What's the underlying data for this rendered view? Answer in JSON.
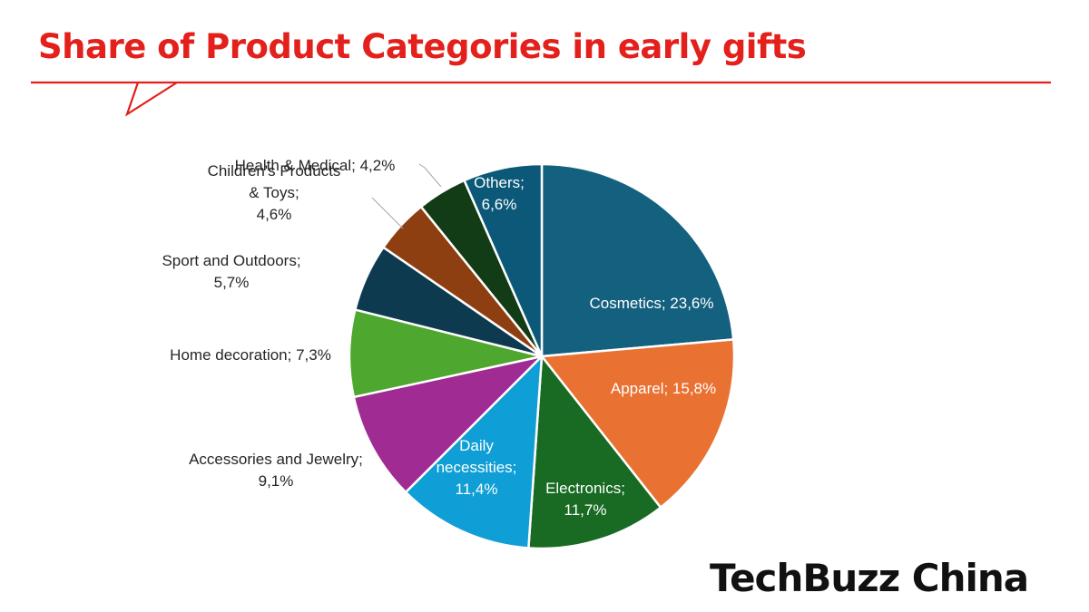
{
  "title": "Share of Product Categories in early gifts",
  "brand": {
    "logo_text": "TechBuzz China",
    "accent": "#e3201b"
  },
  "chart_data": {
    "type": "pie",
    "title": "Share of Product Categories in early gifts",
    "start": "12 o'clock, clockwise",
    "slices": [
      {
        "label": "Cosmetics",
        "value": 23.6,
        "text": "Cosmetics; 23,6%",
        "color": "#14607f",
        "label_pos": "inside"
      },
      {
        "label": "Apparel",
        "value": 15.8,
        "text": "Apparel; 15,8%",
        "color": "#e97132",
        "label_pos": "inside"
      },
      {
        "label": "Electronics",
        "value": 11.7,
        "text": "Electronics; 11,7%",
        "color": "#196b24",
        "label_pos": "inside"
      },
      {
        "label": "Daily necessities",
        "value": 11.4,
        "text": "Daily necessities; 11,4%",
        "color": "#0f9ed5",
        "label_pos": "inside"
      },
      {
        "label": "Accessories and Jewelry",
        "value": 9.1,
        "text": "Accessories and Jewelry; 9,1%",
        "color": "#a02b93",
        "label_pos": "outside"
      },
      {
        "label": "Home decoration",
        "value": 7.3,
        "text": "Home decoration; 7,3%",
        "color": "#4ea72e",
        "label_pos": "outside"
      },
      {
        "label": "Sport and Outdoors",
        "value": 5.7,
        "text": "Sport and Outdoors; 5,7%",
        "color": "#0e3a50",
        "label_pos": "outside"
      },
      {
        "label": "Children's Products & Toys",
        "value": 4.6,
        "text": "Children's Products & Toys; 4,6%",
        "color": "#8e3f12",
        "label_pos": "outside"
      },
      {
        "label": "Health & Medical",
        "value": 4.2,
        "text": "Health & Medical; 4,2%",
        "color": "#123c16",
        "label_pos": "outside"
      },
      {
        "label": "Others",
        "value": 6.6,
        "text": "Others; 6,6%",
        "color": "#0b5878",
        "label_pos": "inside"
      }
    ]
  }
}
